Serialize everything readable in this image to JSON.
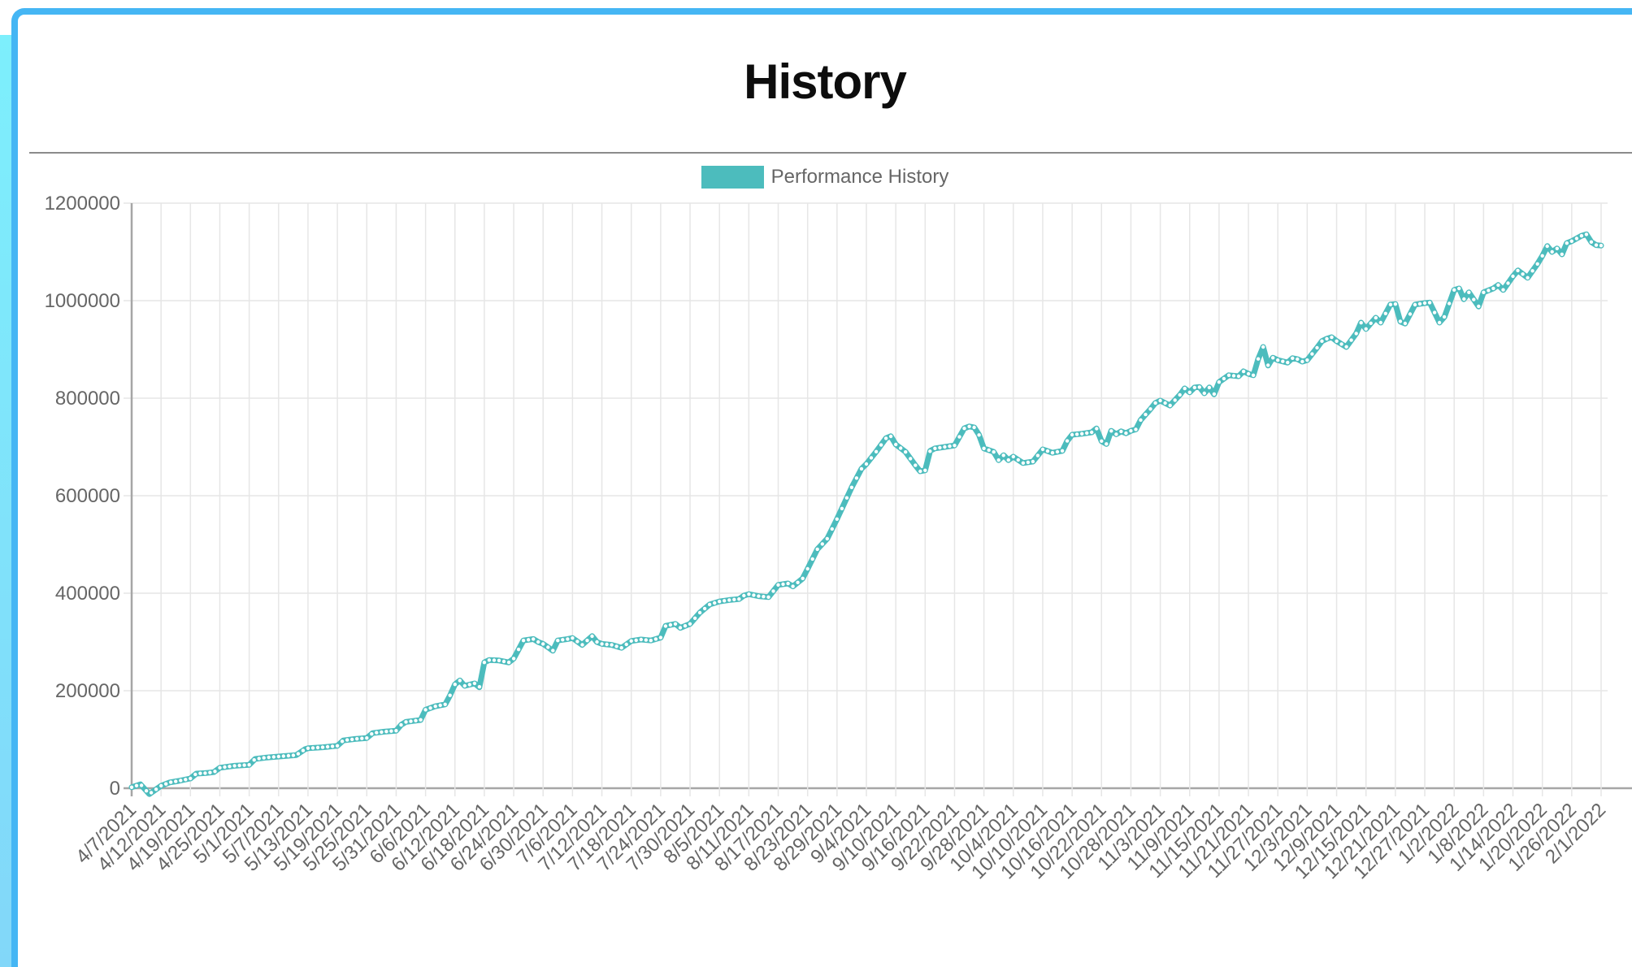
{
  "frame": {
    "top_border_color": "#45b6f4",
    "left_strip_color_top": "#7deffc",
    "left_strip_color_bottom": "#82d7f9"
  },
  "header": {
    "title": "History"
  },
  "legend": {
    "items": [
      {
        "label": "Performance History",
        "color": "#4cbcbd"
      }
    ]
  },
  "colors": {
    "gridline": "#e6e6e6",
    "axis": "#a6a6a6",
    "tick_text": "#666666",
    "title_text": "#0d0d0d",
    "divider": "#8b8b8b",
    "series_line": "#4cbcbd",
    "marker_fill": "#ffffff"
  },
  "chart_data": {
    "type": "line",
    "title": "History",
    "legend_position": "top",
    "grid": true,
    "xlabel": "",
    "ylabel": "",
    "ylim": [
      0,
      1200000
    ],
    "y_ticks": [
      0,
      200000,
      400000,
      600000,
      800000,
      1000000,
      1200000
    ],
    "x_tick_labels": [
      "4/7/2021",
      "4/12/2021",
      "4/19/2021",
      "4/25/2021",
      "5/1/2021",
      "5/7/2021",
      "5/13/2021",
      "5/19/2021",
      "5/25/2021",
      "5/31/2021",
      "6/6/2021",
      "6/12/2021",
      "6/18/2021",
      "6/24/2021",
      "6/30/2021",
      "7/6/2021",
      "7/12/2021",
      "7/18/2021",
      "7/24/2021",
      "7/30/2021",
      "8/5/2021",
      "8/11/2021",
      "8/17/2021",
      "8/23/2021",
      "8/29/2021",
      "9/4/2021",
      "9/10/2021",
      "9/16/2021",
      "9/22/2021",
      "9/28/2021",
      "10/4/2021",
      "10/10/2021",
      "10/16/2021",
      "10/22/2021",
      "10/28/2021",
      "11/3/2021",
      "11/9/2021",
      "11/15/2021",
      "11/21/2021",
      "11/27/2021",
      "12/3/2021",
      "12/9/2021",
      "12/15/2021",
      "12/21/2021",
      "12/27/2021",
      "1/2/2022",
      "1/8/2022",
      "1/14/2022",
      "1/20/2022",
      "1/26/2022",
      "2/1/2022"
    ],
    "series": [
      {
        "name": "Performance History",
        "color": "#4cbcbd",
        "marker": "white-dot",
        "points": [
          [
            0,
            2000
          ],
          [
            0.3,
            8000
          ],
          [
            0.6,
            -12000
          ],
          [
            1,
            5000
          ],
          [
            1.3,
            12000
          ],
          [
            1.6,
            15000
          ],
          [
            2,
            20000
          ],
          [
            2.2,
            30000
          ],
          [
            2.5,
            31000
          ],
          [
            2.8,
            33000
          ],
          [
            3,
            42000
          ],
          [
            3.5,
            46000
          ],
          [
            4,
            48000
          ],
          [
            4.2,
            60000
          ],
          [
            4.6,
            63000
          ],
          [
            5,
            65000
          ],
          [
            5.6,
            68000
          ],
          [
            5.9,
            80000
          ],
          [
            6,
            82000
          ],
          [
            6.5,
            84000
          ],
          [
            7,
            87000
          ],
          [
            7.2,
            98000
          ],
          [
            7.6,
            101000
          ],
          [
            8,
            103000
          ],
          [
            8.2,
            113000
          ],
          [
            8.6,
            116000
          ],
          [
            9,
            118000
          ],
          [
            9.17,
            130000
          ],
          [
            9.33,
            136000
          ],
          [
            9.83,
            140000
          ],
          [
            10,
            161000
          ],
          [
            10.33,
            168000
          ],
          [
            10.67,
            172000
          ],
          [
            10.83,
            190000
          ],
          [
            11,
            213000
          ],
          [
            11.17,
            221000
          ],
          [
            11.33,
            210000
          ],
          [
            11.67,
            215000
          ],
          [
            11.83,
            207000
          ],
          [
            12,
            258000
          ],
          [
            12.17,
            263000
          ],
          [
            12.5,
            262000
          ],
          [
            12.83,
            258000
          ],
          [
            13,
            266000
          ],
          [
            13.33,
            303000
          ],
          [
            13.67,
            306000
          ],
          [
            13.83,
            300000
          ],
          [
            14,
            296000
          ],
          [
            14.17,
            289000
          ],
          [
            14.33,
            282000
          ],
          [
            14.5,
            303000
          ],
          [
            14.83,
            306000
          ],
          [
            15,
            308000
          ],
          [
            15.33,
            294000
          ],
          [
            15.67,
            312000
          ],
          [
            15.83,
            300000
          ],
          [
            16,
            296000
          ],
          [
            16.33,
            294000
          ],
          [
            16.67,
            288000
          ],
          [
            17,
            302000
          ],
          [
            17.33,
            305000
          ],
          [
            17.67,
            303000
          ],
          [
            18,
            309000
          ],
          [
            18.17,
            333000
          ],
          [
            18.5,
            337000
          ],
          [
            18.67,
            329000
          ],
          [
            19,
            337000
          ],
          [
            19.33,
            360000
          ],
          [
            19.67,
            377000
          ],
          [
            20,
            383000
          ],
          [
            20.33,
            386000
          ],
          [
            20.67,
            388000
          ],
          [
            20.83,
            395000
          ],
          [
            21,
            398000
          ],
          [
            21.33,
            394000
          ],
          [
            21.67,
            392000
          ],
          [
            22,
            417000
          ],
          [
            22.33,
            420000
          ],
          [
            22.5,
            414000
          ],
          [
            22.83,
            430000
          ],
          [
            23,
            450000
          ],
          [
            23.33,
            490000
          ],
          [
            23.67,
            512000
          ],
          [
            24,
            552000
          ],
          [
            24.33,
            595000
          ],
          [
            24.5,
            617000
          ],
          [
            24.83,
            655000
          ],
          [
            25,
            665000
          ],
          [
            25.33,
            690000
          ],
          [
            25.67,
            718000
          ],
          [
            25.83,
            722000
          ],
          [
            26,
            705000
          ],
          [
            26.33,
            690000
          ],
          [
            26.67,
            662000
          ],
          [
            26.83,
            650000
          ],
          [
            27,
            652000
          ],
          [
            27.17,
            692000
          ],
          [
            27.33,
            697000
          ],
          [
            27.67,
            700000
          ],
          [
            28,
            703000
          ],
          [
            28.33,
            738000
          ],
          [
            28.5,
            742000
          ],
          [
            28.67,
            740000
          ],
          [
            28.83,
            725000
          ],
          [
            29,
            697000
          ],
          [
            29.33,
            690000
          ],
          [
            29.5,
            673000
          ],
          [
            29.67,
            683000
          ],
          [
            29.83,
            673000
          ],
          [
            30,
            680000
          ],
          [
            30.33,
            667000
          ],
          [
            30.67,
            670000
          ],
          [
            31,
            695000
          ],
          [
            31.33,
            688000
          ],
          [
            31.67,
            692000
          ],
          [
            31.83,
            712000
          ],
          [
            32,
            725000
          ],
          [
            32.33,
            727000
          ],
          [
            32.67,
            730000
          ],
          [
            32.83,
            738000
          ],
          [
            33,
            712000
          ],
          [
            33.17,
            706000
          ],
          [
            33.33,
            733000
          ],
          [
            33.5,
            726000
          ],
          [
            33.67,
            732000
          ],
          [
            33.83,
            728000
          ],
          [
            34,
            733000
          ],
          [
            34.17,
            736000
          ],
          [
            34.33,
            755000
          ],
          [
            34.67,
            778000
          ],
          [
            34.83,
            790000
          ],
          [
            35,
            795000
          ],
          [
            35.33,
            785000
          ],
          [
            35.67,
            807000
          ],
          [
            35.83,
            820000
          ],
          [
            36,
            812000
          ],
          [
            36.17,
            822000
          ],
          [
            36.33,
            823000
          ],
          [
            36.5,
            810000
          ],
          [
            36.67,
            822000
          ],
          [
            36.83,
            808000
          ],
          [
            37,
            833000
          ],
          [
            37.33,
            847000
          ],
          [
            37.67,
            845000
          ],
          [
            37.83,
            855000
          ],
          [
            38,
            850000
          ],
          [
            38.17,
            847000
          ],
          [
            38.33,
            880000
          ],
          [
            38.5,
            905000
          ],
          [
            38.67,
            867000
          ],
          [
            38.83,
            883000
          ],
          [
            39,
            878000
          ],
          [
            39.33,
            873000
          ],
          [
            39.5,
            882000
          ],
          [
            39.67,
            880000
          ],
          [
            39.83,
            875000
          ],
          [
            40,
            878000
          ],
          [
            40.33,
            903000
          ],
          [
            40.5,
            917000
          ],
          [
            40.67,
            922000
          ],
          [
            40.83,
            925000
          ],
          [
            41,
            917000
          ],
          [
            41.33,
            905000
          ],
          [
            41.67,
            933000
          ],
          [
            41.83,
            955000
          ],
          [
            42,
            942000
          ],
          [
            42.33,
            965000
          ],
          [
            42.5,
            955000
          ],
          [
            42.83,
            992000
          ],
          [
            43,
            993000
          ],
          [
            43.17,
            957000
          ],
          [
            43.33,
            953000
          ],
          [
            43.67,
            992000
          ],
          [
            44,
            995000
          ],
          [
            44.17,
            996000
          ],
          [
            44.5,
            955000
          ],
          [
            44.67,
            967000
          ],
          [
            45,
            1022000
          ],
          [
            45.17,
            1025000
          ],
          [
            45.33,
            1003000
          ],
          [
            45.5,
            1017000
          ],
          [
            45.83,
            988000
          ],
          [
            46,
            1017000
          ],
          [
            46.33,
            1025000
          ],
          [
            46.5,
            1032000
          ],
          [
            46.67,
            1022000
          ],
          [
            47,
            1050000
          ],
          [
            47.17,
            1062000
          ],
          [
            47.5,
            1047000
          ],
          [
            47.83,
            1075000
          ],
          [
            48,
            1092000
          ],
          [
            48.17,
            1112000
          ],
          [
            48.33,
            1100000
          ],
          [
            48.5,
            1107000
          ],
          [
            48.67,
            1095000
          ],
          [
            48.83,
            1118000
          ],
          [
            49,
            1122000
          ],
          [
            49.33,
            1133000
          ],
          [
            49.5,
            1136000
          ],
          [
            49.67,
            1120000
          ],
          [
            49.83,
            1114000
          ],
          [
            50,
            1113000
          ]
        ]
      }
    ]
  }
}
